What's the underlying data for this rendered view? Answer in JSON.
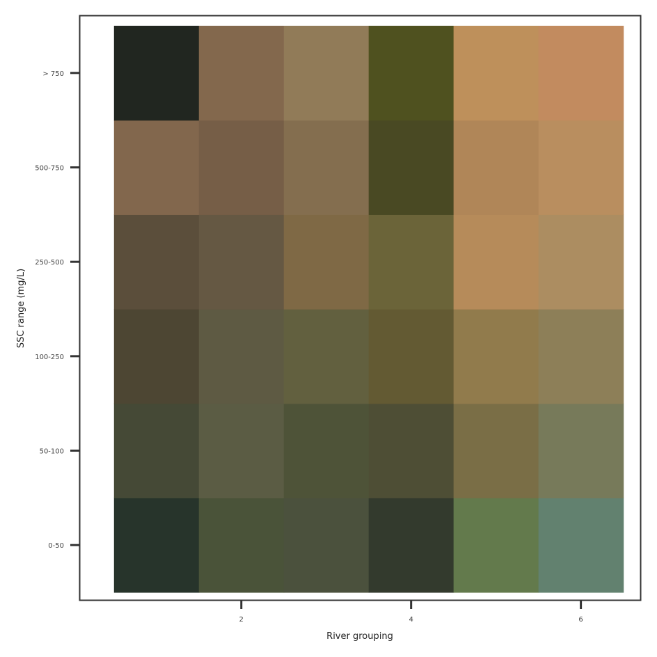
{
  "chart_data": {
    "type": "heatmap",
    "title": "",
    "xlabel": "River grouping",
    "ylabel": "SSC range (mg/L)",
    "x_values": [
      1,
      2,
      3,
      4,
      5,
      6
    ],
    "x_ticks": [
      2,
      4,
      6
    ],
    "x_tick_labels": [
      "2",
      "4",
      "6"
    ],
    "xlim": [
      0.1,
      6.7
    ],
    "y_categories": [
      "0-50",
      "50-100",
      "100-250",
      "250-500",
      "500-750",
      "> 750"
    ],
    "grid": false,
    "legend": "none",
    "cell_colors": [
      [
        "#27342b",
        "#4a5339",
        "#4b513d",
        "#333a2d",
        "#637a4c",
        "#62816f"
      ],
      [
        "#454936",
        "#5b5c44",
        "#4e5338",
        "#4e4e35",
        "#7a6e46",
        "#777a5a"
      ],
      [
        "#4d4633",
        "#5e5a43",
        "#62603f",
        "#635a33",
        "#917b4c",
        "#8d7f58"
      ],
      [
        "#5b4e3b",
        "#655843",
        "#7f6945",
        "#6b6439",
        "#b68b5a",
        "#ac8d61"
      ],
      [
        "#82674d",
        "#765e47",
        "#846e4f",
        "#494923",
        "#b08658",
        "#b98e5f"
      ],
      [
        "#212620",
        "#83684d",
        "#917b58",
        "#4f511f",
        "#be905b",
        "#c28b5f"
      ]
    ]
  }
}
